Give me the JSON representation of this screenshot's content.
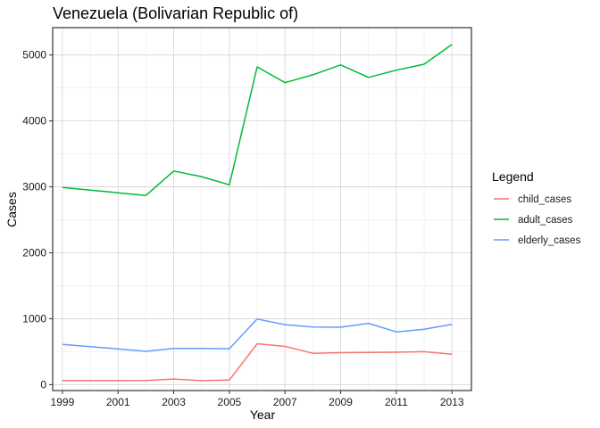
{
  "chart_data": {
    "type": "line",
    "title": "Venezuela (Bolivarian Republic of)",
    "xlabel": "Year",
    "ylabel": "Cases",
    "x": [
      1999,
      2000,
      2001,
      2002,
      2003,
      2004,
      2005,
      2006,
      2007,
      2008,
      2009,
      2010,
      2011,
      2012,
      2013
    ],
    "xlim": [
      1998.65,
      2013.7
    ],
    "ylim": [
      -90,
      5415
    ],
    "x_ticks": [
      1999,
      2001,
      2003,
      2005,
      2007,
      2009,
      2011,
      2013
    ],
    "x_tick_labels": [
      "1999",
      "2001",
      "2003",
      "2005",
      "2007",
      "2009",
      "2011",
      "2013"
    ],
    "y_ticks": [
      0,
      1000,
      2000,
      3000,
      4000,
      5000
    ],
    "y_tick_labels": [
      "0",
      "1000",
      "2000",
      "3000",
      "4000",
      "5000"
    ],
    "grid": true,
    "legend": {
      "title": "Legend",
      "position": "right"
    },
    "series": [
      {
        "name": "child_cases",
        "color": "#F8766D",
        "values": [
          60,
          60,
          60,
          62,
          85,
          60,
          70,
          620,
          580,
          475,
          485,
          488,
          492,
          500,
          460
        ]
      },
      {
        "name": "adult_cases",
        "color": "#00BA38",
        "values": [
          2990,
          2950,
          2910,
          2870,
          3240,
          3155,
          3030,
          4820,
          4580,
          4700,
          4850,
          4660,
          4770,
          4860,
          5160
        ]
      },
      {
        "name": "elderly_cases",
        "color": "#619CFF",
        "values": [
          610,
          575,
          540,
          505,
          550,
          550,
          545,
          995,
          910,
          875,
          870,
          930,
          800,
          840,
          915
        ]
      }
    ]
  }
}
